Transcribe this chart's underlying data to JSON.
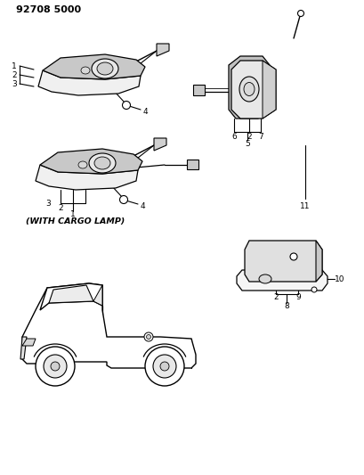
{
  "page_id": "92708 5000",
  "bg_color": "#ffffff",
  "line_color": "#000000",
  "fig_width": 4.1,
  "fig_height": 5.33,
  "dpi": 100,
  "cargo_lamp_label": "(WITH CARGO LAMP)"
}
